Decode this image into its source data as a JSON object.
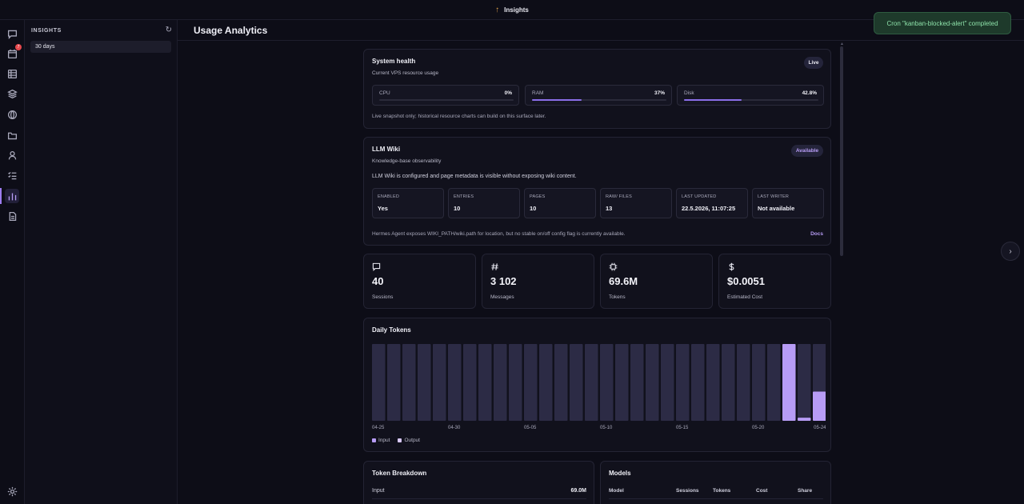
{
  "topbar": {
    "title": "Insights"
  },
  "toast": {
    "text": "Cron \"kanban-blocked-alert\" completed"
  },
  "rail": {
    "items": [
      {
        "name": "chat-icon"
      },
      {
        "name": "calendar-icon",
        "badge": "7"
      },
      {
        "name": "grid-icon"
      },
      {
        "name": "layers-icon"
      },
      {
        "name": "globe-icon"
      },
      {
        "name": "folder-icon"
      },
      {
        "name": "user-icon"
      },
      {
        "name": "tasks-icon"
      },
      {
        "name": "analytics-icon",
        "active": true
      },
      {
        "name": "document-icon"
      }
    ],
    "bottom": "settings-icon"
  },
  "panel": {
    "label": "INSIGHTS",
    "selected": "30 days"
  },
  "page": {
    "title": "Usage Analytics"
  },
  "system_health": {
    "title": "System health",
    "badge": "Live",
    "subtitle": "Current VPS resource usage",
    "resources": [
      {
        "name": "CPU",
        "value": "0%",
        "percent": 0
      },
      {
        "name": "RAM",
        "value": "37%",
        "percent": 37
      },
      {
        "name": "Disk",
        "value": "42.8%",
        "percent": 42.8
      }
    ],
    "note": "Live snapshot only; historical resource charts can build on this surface later."
  },
  "llm_wiki": {
    "title": "LLM Wiki",
    "badge": "Available",
    "subtitle": "Knowledge-base observability",
    "description": "LLM Wiki is configured and page metadata is visible without exposing wiki content.",
    "stats": [
      {
        "label": "ENABLED",
        "value": "Yes"
      },
      {
        "label": "ENTRIES",
        "value": "10"
      },
      {
        "label": "PAGES",
        "value": "10"
      },
      {
        "label": "RAW/ FILES",
        "value": "13"
      },
      {
        "label": "LAST UPDATED",
        "value": "22.5.2026, 11:07:25"
      },
      {
        "label": "LAST WRITER",
        "value": "Not available"
      }
    ],
    "note": "Hermes Agent exposes WIKI_PATH/wiki.path for location, but no stable on/off config flag is currently available.",
    "docs_link": "Docs"
  },
  "kpis": [
    {
      "icon": "message-icon",
      "value": "40",
      "label": "Sessions"
    },
    {
      "icon": "hash-icon",
      "value": "3 102",
      "label": "Messages"
    },
    {
      "icon": "chip-icon",
      "value": "69.6M",
      "label": "Tokens"
    },
    {
      "icon": "dollar-icon",
      "value": "$0.0051",
      "label": "Estimated Cost"
    }
  ],
  "chart_data": {
    "type": "bar",
    "title": "Daily Tokens",
    "tick_labels": [
      "04-25",
      "04-30",
      "05-05",
      "05-10",
      "05-15",
      "05-20",
      "05-24"
    ],
    "tick_indices": [
      0,
      5,
      10,
      15,
      20,
      25,
      29
    ],
    "series": [
      {
        "name": "Input",
        "color": "#b79cf5",
        "values": [
          0,
          0,
          0,
          0,
          0,
          0,
          0,
          0,
          0,
          0,
          0,
          0,
          0,
          0,
          0,
          0,
          0,
          0,
          0,
          0,
          0,
          0,
          0,
          0,
          0,
          0,
          0,
          100,
          4,
          38
        ]
      },
      {
        "name": "Output",
        "color": "#d9c9fb",
        "values": [
          0,
          0,
          0,
          0,
          0,
          0,
          0,
          0,
          0,
          0,
          0,
          0,
          0,
          0,
          0,
          0,
          0,
          0,
          0,
          0,
          0,
          0,
          0,
          0,
          0,
          0,
          0,
          0,
          0,
          0
        ]
      }
    ],
    "ylim": [
      0,
      100
    ],
    "empty_color": "#2c2b45",
    "legend": "bottom-left"
  },
  "token_breakdown": {
    "title": "Token Breakdown",
    "rows": [
      {
        "label": "Input",
        "value": "69.0M"
      }
    ]
  },
  "models": {
    "title": "Models",
    "columns": [
      "Model",
      "Sessions",
      "Tokens",
      "Cost",
      "Share"
    ]
  }
}
